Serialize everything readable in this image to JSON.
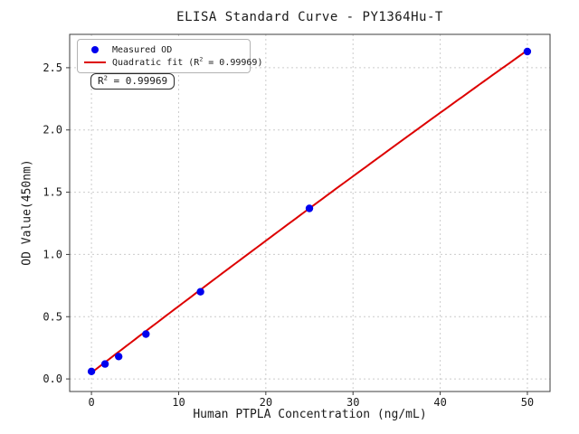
{
  "chart_data": {
    "type": "scatter",
    "title": "ELISA Standard Curve - PY1364Hu-T",
    "xlabel": "Human PTPLA Concentration (ng/mL)",
    "ylabel": "OD Value(450nm)",
    "series": [
      {
        "name": "Measured OD",
        "type": "scatter",
        "color": "#0000ee",
        "x": [
          0,
          1.56,
          3.12,
          6.25,
          12.5,
          25,
          50
        ],
        "y": [
          0.06,
          0.12,
          0.18,
          0.36,
          0.7,
          1.37,
          2.63
        ]
      },
      {
        "name": "Quadratic fit (R² = 0.99969)",
        "type": "line",
        "color": "#dd0000",
        "fit_coefficients": {
          "a": 0.05,
          "b": 0.0538,
          "c": -4e-05
        },
        "x_range": [
          0,
          50
        ]
      }
    ],
    "r_squared": 0.99969,
    "xlim": [
      -2.5,
      52.6
    ],
    "ylim": [
      -0.101,
      2.768
    ],
    "xticks": [
      0,
      10,
      20,
      30,
      40,
      50
    ],
    "xtick_labels": [
      "0",
      "10",
      "20",
      "30",
      "40",
      "50"
    ],
    "ytick_values": [
      0,
      0.5,
      1.0,
      1.5,
      2.0,
      2.5
    ],
    "ytick_labels": [
      "0.0",
      "0.5",
      "1.0",
      "1.5",
      "2.0",
      "2.5"
    ],
    "grid": true,
    "grid_style": "dashed",
    "legend_position": "upper left",
    "annotation": "R² = 0.99969",
    "colors": {
      "scatter": "#0000ee",
      "fit_line": "#dd0000",
      "grid": "#cccccc",
      "frame": "#3c3c3c",
      "text": "#1a1a1a",
      "background": "#ffffff"
    }
  },
  "legend": {
    "items": [
      {
        "label": "Measured OD"
      },
      {
        "pre": "Quadratic fit (R",
        "sup": "2",
        "post": " = 0.99969)"
      }
    ]
  },
  "annotation": {
    "pre": "R",
    "sup": "2",
    "post": " = 0.99969"
  }
}
